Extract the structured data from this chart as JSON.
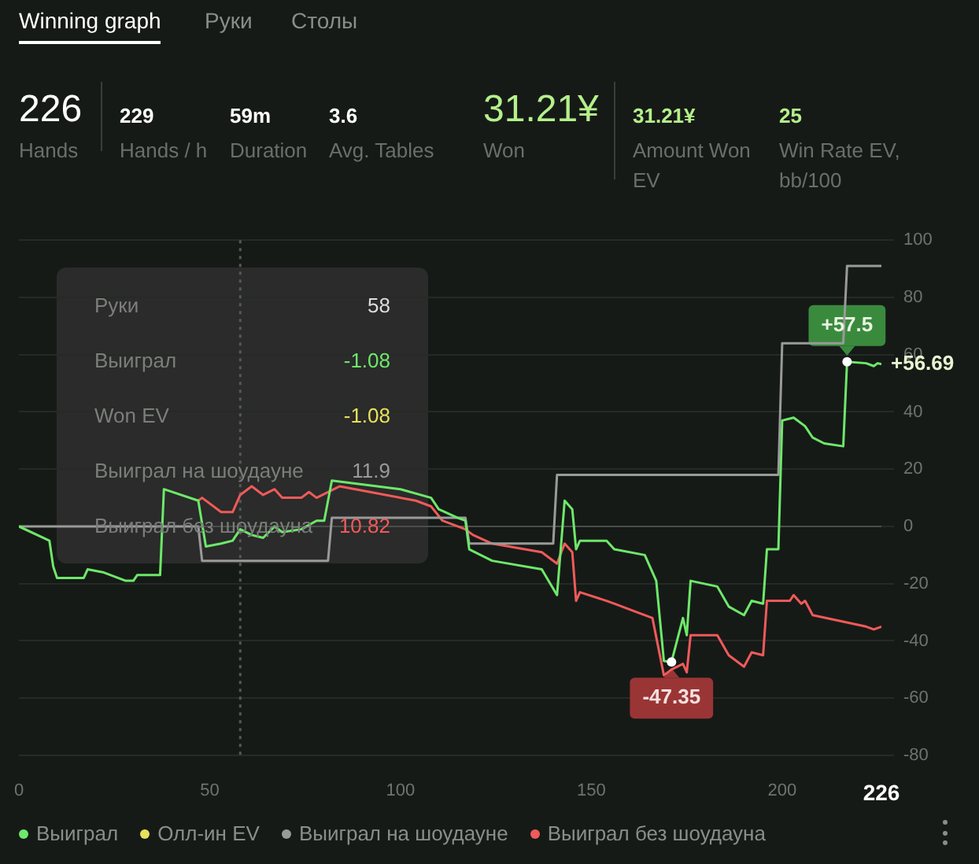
{
  "chart_data": [
    {
      "type": "other",
      "title": "Winning graph",
      "annotations": [
        "Руки",
        "Столы",
        "226",
        "Hands",
        "229",
        "Hands / h",
        "59m",
        "Duration",
        "3.6",
        "Avg. Tables",
        "31.21¥",
        "Won",
        "31.21¥",
        "Amount Won EV",
        "25",
        "Win Rate EV, bb/100"
      ]
    },
    {
      "type": "line",
      "xlim": [
        0,
        226
      ],
      "xticks": [
        0,
        50,
        100,
        150,
        200,
        226
      ],
      "ylim": [
        -80,
        100
      ],
      "yticks": [
        -80,
        -60,
        -40,
        -20,
        0,
        20,
        40,
        60,
        80,
        100
      ],
      "grid": "y",
      "legend": "bottom",
      "marker": "none",
      "line_style": "solid",
      "ref_lines": [
        {
          "axis": "x",
          "value": 58,
          "line_style": "dotted",
          "color": "#555955"
        }
      ],
      "series": [
        {
          "name": "Выиграл",
          "color": "#6ee86a",
          "x": [
            0,
            8,
            9,
            10,
            17,
            18,
            22,
            28,
            30,
            31,
            37,
            38,
            47,
            49,
            53,
            56,
            58,
            61,
            64,
            67,
            69,
            74,
            78,
            80,
            82,
            100,
            108,
            110,
            115,
            117,
            118,
            124,
            137,
            141,
            143,
            145,
            146,
            147,
            154,
            156,
            164,
            167,
            169,
            171,
            174,
            175,
            176,
            183,
            186,
            190,
            192,
            195,
            196,
            199,
            200,
            203,
            206,
            208,
            211,
            216,
            217,
            222,
            224,
            225,
            226
          ],
          "values": [
            0,
            -5,
            -14,
            -18,
            -18,
            -15,
            -16,
            -19,
            -19,
            -17,
            -17,
            13,
            9,
            -7,
            -6,
            -5,
            -1,
            -3,
            -4,
            0,
            -2,
            -1,
            2,
            2,
            16,
            13,
            10,
            6,
            3,
            2,
            -8,
            -12,
            -15,
            -24,
            9,
            6,
            -8,
            -5,
            -5,
            -8,
            -10,
            -19,
            -47,
            -47.35,
            -32,
            -38,
            -19,
            -21,
            -28,
            -31,
            -26,
            -27,
            -8,
            -8,
            37,
            38,
            35,
            31,
            29,
            28,
            57.5,
            57,
            56,
            57,
            56.69
          ]
        },
        {
          "name": "Олл-ин EV",
          "color": "#e8e05a"
        },
        {
          "name": "Выиграл на шоудауне",
          "color": "#9a9a9a",
          "x": [
            0,
            47,
            48,
            81,
            82,
            117,
            118,
            140,
            141,
            199,
            200,
            216,
            217,
            226
          ],
          "values": [
            0,
            0,
            -12,
            -12,
            3,
            3,
            -6,
            -6,
            18,
            18,
            64,
            64,
            91,
            91
          ]
        },
        {
          "name": "Выиграл без шоудауна",
          "color": "#f05a5a",
          "x": [
            47,
            48,
            53,
            56,
            58,
            61,
            64,
            67,
            69,
            74,
            76,
            78,
            84,
            92,
            104,
            108,
            111,
            117,
            119,
            124,
            137,
            141,
            143,
            145,
            146,
            147,
            154,
            156,
            162,
            166,
            169,
            171,
            174,
            175,
            176,
            183,
            186,
            190,
            192,
            195,
            196,
            202,
            203,
            205,
            206,
            208,
            215,
            222,
            224,
            226
          ],
          "values": [
            9,
            10,
            5,
            5,
            11,
            14,
            11,
            13,
            10,
            10,
            12,
            10,
            14,
            12,
            9,
            7,
            2,
            -1,
            -3,
            -6,
            -9,
            -13,
            -6,
            -9,
            -26,
            -23,
            -26,
            -27,
            -30,
            -32,
            -52,
            -50,
            -48,
            -51,
            -38,
            -38,
            -45,
            -49,
            -44,
            -45,
            -26,
            -26,
            -24,
            -27,
            -26,
            -31,
            -33,
            -35,
            -36,
            -35
          ]
        }
      ],
      "annotations": [
        "Руки",
        "58",
        "Выиграл",
        "-1.08",
        "Won EV",
        "-1.08",
        "Выиграл на шоудауне",
        "11.9",
        "Выиграл без шоудауна",
        "10.82",
        {
          "text": "+57.5",
          "x": 217,
          "y": 57.5
        },
        {
          "text": "-47.35",
          "x": 171,
          "y": -47.35
        },
        {
          "text": "+56.69",
          "x": 226,
          "y": 56.69
        }
      ]
    }
  ]
}
